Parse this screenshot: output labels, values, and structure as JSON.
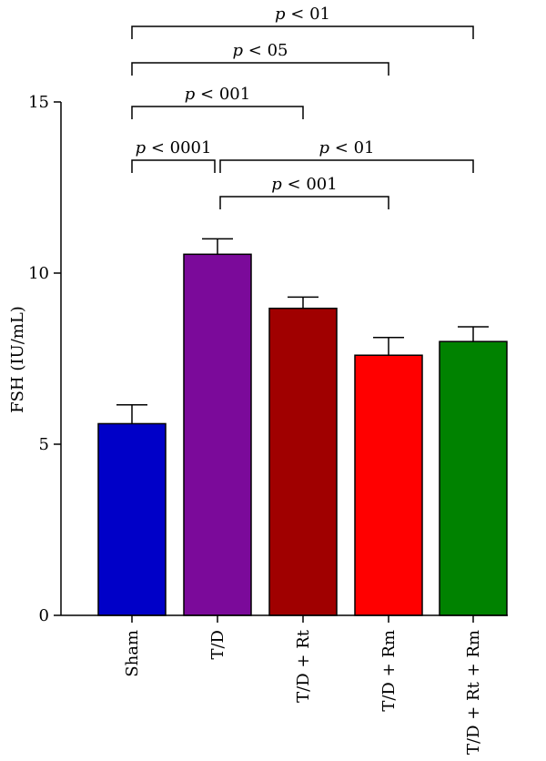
{
  "chart_data": {
    "type": "bar",
    "title": "",
    "xlabel": "",
    "ylabel": "FSH (IU/mL)",
    "ylim": [
      0,
      15
    ],
    "yticks": [
      0,
      5,
      10,
      15
    ],
    "grid": false,
    "categories": [
      "Sham",
      "T/D",
      "T/D + Rt",
      "T/D + Rm",
      "T/D + Rt + Rm"
    ],
    "values": [
      5.6,
      10.55,
      8.97,
      7.6,
      8.0
    ],
    "errors": [
      0.55,
      0.45,
      0.33,
      0.52,
      0.43
    ],
    "colors": [
      "#0000C8",
      "#7B0A9A",
      "#A00000",
      "#FF0000",
      "#008200"
    ],
    "significance": [
      {
        "from": 0,
        "to": 4,
        "p": "p",
        "label": " < 01"
      },
      {
        "from": 0,
        "to": 3,
        "p": "p",
        "label": " < 05"
      },
      {
        "from": 0,
        "to": 2,
        "p": "p",
        "label": " < 001"
      },
      {
        "from": 0,
        "to": 1,
        "p": "p",
        "label": " < 0001"
      },
      {
        "from": 1,
        "to": 4,
        "p": "p",
        "label": " < 01"
      },
      {
        "from": 1,
        "to": 3,
        "p": "p",
        "label": " < 001"
      }
    ]
  }
}
